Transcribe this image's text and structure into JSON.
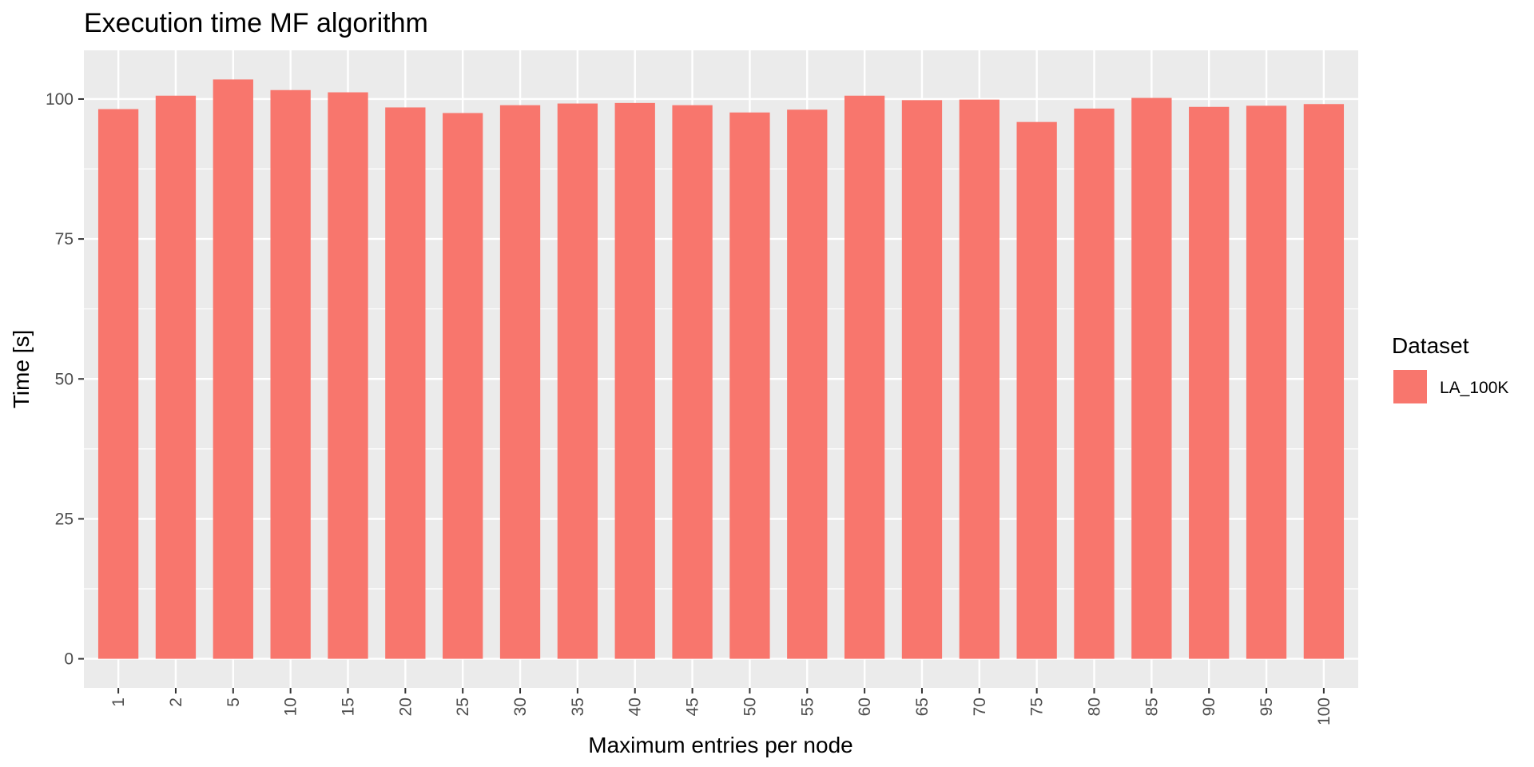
{
  "chart_data": {
    "type": "bar",
    "title": "Execution time MF algorithm",
    "xlabel": "Maximum entries per node",
    "ylabel": "Time [s]",
    "categories": [
      "1",
      "2",
      "5",
      "10",
      "15",
      "20",
      "25",
      "30",
      "35",
      "40",
      "45",
      "50",
      "55",
      "60",
      "65",
      "70",
      "75",
      "80",
      "85",
      "90",
      "95",
      "100"
    ],
    "series": [
      {
        "name": "LA_100K",
        "color": "#F8766D",
        "values": [
          98.2,
          100.6,
          103.5,
          101.6,
          101.2,
          98.5,
          97.5,
          98.9,
          99.2,
          99.3,
          98.9,
          97.6,
          98.1,
          100.6,
          99.8,
          99.9,
          95.9,
          98.3,
          100.2,
          98.6,
          98.8,
          99.1
        ]
      }
    ],
    "ylim": [
      -5.2,
      108.7
    ],
    "yticks": [
      0,
      25,
      50,
      75,
      100
    ],
    "grid": true,
    "panel_background": "#EBEBEB",
    "legend": {
      "title": "Dataset",
      "position": "right"
    }
  }
}
